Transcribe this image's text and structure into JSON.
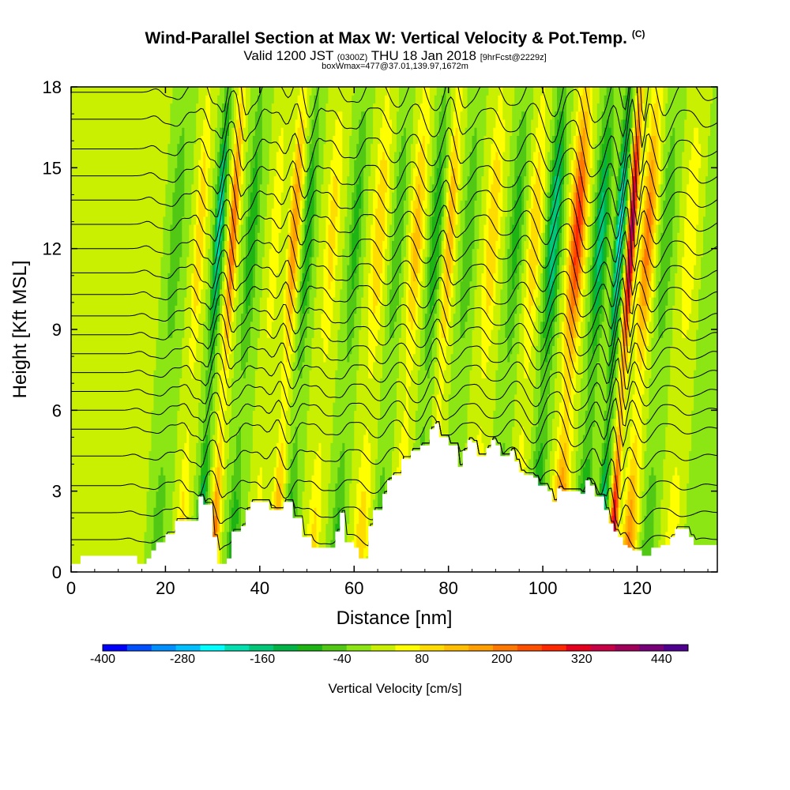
{
  "header": {
    "title": "Wind-Parallel Section at Max W: Vertical Velocity & Pot.Temp.",
    "copyright": "(C)",
    "valid_prefix": "Valid 1200 JST",
    "valid_zulu": "(0300Z)",
    "valid_date": "THU 18 Jan 2018",
    "forecast": "[9hrFcst@2229z]",
    "boxwmax": "boxWmax=477@37.01,139.97,1672m"
  },
  "chart_data": {
    "type": "heatmap",
    "title": "Wind-Parallel Section at Max W: Vertical Velocity & Pot.Temp.",
    "xlabel": "Distance [nm]",
    "ylabel": "Height [Kft MSL]",
    "xlim": [
      0,
      137
    ],
    "ylim": [
      0,
      18
    ],
    "xticks": [
      0,
      20,
      40,
      60,
      80,
      100,
      120
    ],
    "yticks": [
      0,
      3,
      6,
      9,
      12,
      15,
      18
    ],
    "colorbar": {
      "label": "Vertical Velocity [cm/s]",
      "min": -400,
      "max": 480,
      "step": 40,
      "tick_labels": [
        -400,
        -280,
        -160,
        -40,
        80,
        200,
        320,
        440
      ],
      "colors": [
        "#0000ff",
        "#0050ff",
        "#0090ff",
        "#00c0ff",
        "#00ffff",
        "#00e0b0",
        "#00c878",
        "#00b446",
        "#1eb414",
        "#50c814",
        "#8ce614",
        "#c8f000",
        "#ffff00",
        "#ffdc00",
        "#ffbe00",
        "#ffa000",
        "#ff7800",
        "#ff5000",
        "#ff2800",
        "#e6001e",
        "#c80046",
        "#a0005a",
        "#780078",
        "#500090"
      ]
    },
    "terrain_profile": {
      "x": [
        0,
        2,
        13,
        14,
        16,
        17,
        18,
        20,
        22,
        26,
        27,
        28,
        30,
        31,
        33,
        34,
        36,
        37,
        38,
        40,
        42,
        45,
        47,
        49,
        51,
        53,
        56,
        57,
        58,
        60,
        61,
        63,
        64,
        66,
        67,
        68,
        70,
        72,
        74,
        76,
        77,
        78,
        80,
        82,
        83,
        84,
        85,
        86,
        88,
        89,
        90,
        91,
        93,
        94,
        95,
        96,
        98,
        99,
        101,
        102,
        103,
        104,
        106,
        108,
        109,
        110,
        111,
        113,
        114,
        115,
        116,
        117,
        118,
        119,
        121,
        123,
        125,
        127,
        128,
        129,
        131,
        132,
        135,
        137
      ],
      "y_kft": [
        0.3,
        0.6,
        0.6,
        0.3,
        0.5,
        0.8,
        1.1,
        1.4,
        1.9,
        1.9,
        2.8,
        2.5,
        1.3,
        0.3,
        0.5,
        1.5,
        1.7,
        2.3,
        2.6,
        2.6,
        2.3,
        2.6,
        2.0,
        1.3,
        0.9,
        0.9,
        1.5,
        2.2,
        1.1,
        0.9,
        0.5,
        1.7,
        2.3,
        2.9,
        3.4,
        3.6,
        4.2,
        4.5,
        4.7,
        5.3,
        5.5,
        5.0,
        4.7,
        3.9,
        4.5,
        4.9,
        4.8,
        4.3,
        4.6,
        4.9,
        4.7,
        4.3,
        4.5,
        4.1,
        3.7,
        3.6,
        3.5,
        3.2,
        3.0,
        2.6,
        3.1,
        3.0,
        3.0,
        2.9,
        3.4,
        3.2,
        2.8,
        2.3,
        1.8,
        1.5,
        1.3,
        1.0,
        0.9,
        0.8,
        0.6,
        0.9,
        1.0,
        1.3,
        1.6,
        1.6,
        1.3,
        1.0,
        1.0,
        1.0
      ]
    },
    "vertical_velocity_features": [
      {
        "x": 14,
        "w": 0.8,
        "amp": 40
      },
      {
        "x": 19,
        "w": 0.9,
        "amp": -80
      },
      {
        "x": 24,
        "w": 0.7,
        "amp": 120
      },
      {
        "x": 28,
        "w": 0.6,
        "amp": -220
      },
      {
        "x": 31,
        "w": 0.6,
        "amp": 240
      },
      {
        "x": 35,
        "w": 0.8,
        "amp": -120
      },
      {
        "x": 40,
        "w": 0.7,
        "amp": 80
      },
      {
        "x": 44,
        "w": 0.7,
        "amp": 200
      },
      {
        "x": 47,
        "w": 0.7,
        "amp": -120
      },
      {
        "x": 52,
        "w": 0.9,
        "amp": 100
      },
      {
        "x": 57,
        "w": 0.8,
        "amp": -100
      },
      {
        "x": 62,
        "w": 1.0,
        "amp": 120
      },
      {
        "x": 66,
        "w": 0.8,
        "amp": -80
      },
      {
        "x": 70,
        "w": 0.9,
        "amp": 140
      },
      {
        "x": 74,
        "w": 0.8,
        "amp": -120
      },
      {
        "x": 77,
        "w": 0.7,
        "amp": 160
      },
      {
        "x": 81,
        "w": 0.8,
        "amp": -80
      },
      {
        "x": 86,
        "w": 1.0,
        "amp": 120
      },
      {
        "x": 91,
        "w": 0.9,
        "amp": -100
      },
      {
        "x": 95,
        "w": 0.9,
        "amp": 120
      },
      {
        "x": 99,
        "w": 0.9,
        "amp": -200
      },
      {
        "x": 104,
        "w": 1.0,
        "amp": 300
      },
      {
        "x": 109,
        "w": 0.9,
        "amp": -180
      },
      {
        "x": 113,
        "w": 0.6,
        "amp": -260
      },
      {
        "x": 115.5,
        "w": 0.5,
        "amp": 440
      },
      {
        "x": 119,
        "w": 0.9,
        "amp": 220
      },
      {
        "x": 123,
        "w": 0.9,
        "amp": -80
      },
      {
        "x": 128,
        "w": 1.0,
        "amp": 80
      },
      {
        "x": 133,
        "w": 1.0,
        "amp": -40
      }
    ],
    "theta_isentropes_kft_at_x0": [
      1.2,
      2.2,
      3.2,
      4.3,
      5.3,
      6.0,
      6.7,
      7.4,
      8.1,
      8.8,
      9.5,
      10.3,
      11.1,
      12.0,
      12.9,
      13.8,
      14.7,
      15.7,
      16.8,
      17.8
    ]
  }
}
